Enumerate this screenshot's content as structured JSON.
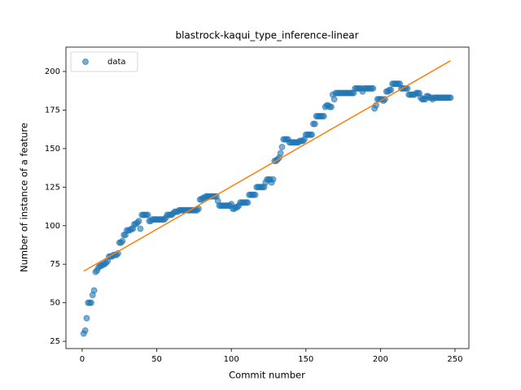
{
  "chart_data": {
    "type": "scatter",
    "title": "blastrock-kaqui_type_inference-linear",
    "x_label": "Commit number",
    "y_label": "Number of instance of a feature",
    "legend_position": "upper left",
    "xlim": [
      -10.9,
      259.3
    ],
    "ylim": [
      20.3,
      215.8
    ],
    "xticks": [
      0,
      50,
      100,
      150,
      200,
      250
    ],
    "yticks": [
      25,
      50,
      75,
      100,
      125,
      150,
      175,
      200
    ],
    "series": [
      {
        "name": "data",
        "color": "#1f77b4",
        "x": [
          1,
          2,
          3,
          4,
          5,
          6,
          7,
          8,
          9,
          10,
          11,
          12,
          13,
          14,
          15,
          16,
          17,
          18,
          19,
          20,
          21,
          22,
          23,
          24,
          25,
          26,
          27,
          28,
          29,
          30,
          31,
          32,
          33,
          34,
          35,
          36,
          37,
          38,
          39,
          40,
          41,
          42,
          43,
          44,
          45,
          46,
          47,
          48,
          49,
          50,
          51,
          52,
          53,
          54,
          55,
          56,
          57,
          58,
          59,
          60,
          61,
          62,
          63,
          64,
          65,
          66,
          67,
          68,
          69,
          70,
          71,
          72,
          73,
          74,
          75,
          76,
          77,
          78,
          79,
          80,
          81,
          82,
          83,
          84,
          85,
          86,
          87,
          88,
          89,
          90,
          91,
          92,
          93,
          94,
          95,
          96,
          97,
          98,
          99,
          100,
          101,
          102,
          103,
          104,
          105,
          106,
          107,
          108,
          109,
          110,
          111,
          112,
          113,
          114,
          115,
          116,
          117,
          118,
          119,
          120,
          121,
          122,
          123,
          124,
          125,
          126,
          127,
          128,
          129,
          130,
          131,
          132,
          133,
          134,
          135,
          136,
          137,
          138,
          139,
          140,
          141,
          142,
          143,
          144,
          145,
          146,
          147,
          148,
          149,
          150,
          151,
          152,
          153,
          154,
          155,
          156,
          157,
          158,
          159,
          160,
          161,
          162,
          163,
          164,
          165,
          166,
          167,
          168,
          169,
          170,
          171,
          172,
          173,
          174,
          175,
          176,
          177,
          178,
          179,
          180,
          181,
          182,
          183,
          184,
          185,
          186,
          187,
          188,
          189,
          190,
          191,
          192,
          193,
          194,
          195,
          196,
          197,
          198,
          199,
          200,
          201,
          202,
          203,
          204,
          205,
          206,
          207,
          208,
          209,
          210,
          211,
          212,
          213,
          214,
          215,
          216,
          217,
          218,
          219,
          220,
          221,
          222,
          223,
          224,
          225,
          226,
          227,
          228,
          229,
          230,
          231,
          232,
          233,
          234,
          235,
          236,
          237,
          238,
          239,
          240,
          241,
          242,
          243,
          244,
          245,
          246,
          247
        ],
        "values": [
          30,
          32,
          40,
          50,
          50,
          50,
          55,
          58,
          70,
          71,
          73,
          74,
          74,
          75,
          75,
          76,
          77,
          80,
          80,
          80,
          81,
          81,
          81,
          82,
          89,
          89,
          90,
          94,
          94,
          97,
          97,
          97,
          98,
          98,
          101,
          101,
          102,
          103,
          98,
          107,
          107,
          107,
          107,
          107,
          103,
          103,
          104,
          104,
          104,
          104,
          104,
          104,
          104,
          104,
          104,
          105,
          107,
          107,
          107,
          107,
          108,
          109,
          109,
          109,
          110,
          110,
          110,
          110,
          110,
          110,
          110,
          110,
          110,
          110,
          110,
          110,
          110,
          111,
          117,
          117,
          118,
          118,
          119,
          119,
          119,
          119,
          119,
          119,
          119,
          119,
          116,
          113,
          113,
          113,
          113,
          113,
          113,
          113,
          113,
          114,
          111,
          111,
          112,
          112,
          113,
          115,
          115,
          115,
          115,
          115,
          115,
          120,
          120,
          120,
          120,
          120,
          125,
          125,
          125,
          125,
          125,
          125,
          128,
          130,
          130,
          130,
          128,
          130,
          142,
          142,
          143,
          144,
          147,
          151,
          156,
          156,
          156,
          156,
          154,
          154,
          154,
          154,
          154,
          154,
          154,
          155,
          155,
          155,
          156,
          159,
          159,
          159,
          159,
          159,
          166,
          166,
          171,
          171,
          171,
          171,
          171,
          171,
          177,
          178,
          178,
          177,
          177,
          185,
          182,
          186,
          186,
          186,
          186,
          186,
          186,
          186,
          186,
          186,
          186,
          186,
          186,
          186,
          189,
          189,
          189,
          189,
          189,
          187,
          189,
          189,
          189,
          189,
          189,
          189,
          189,
          176,
          178,
          182,
          182,
          182,
          182,
          181,
          182,
          187,
          187,
          188,
          188,
          192,
          192,
          192,
          192,
          192,
          192,
          189,
          189,
          189,
          189,
          189,
          185,
          185,
          185,
          185,
          185,
          186,
          186,
          186,
          183,
          182,
          182,
          182,
          184,
          184,
          183,
          183,
          182,
          183,
          183,
          183,
          183,
          183,
          183,
          183,
          183,
          183,
          183,
          183,
          183
        ]
      }
    ],
    "fit_line": {
      "color": "#ff7f0e",
      "x": [
        1,
        247
      ],
      "values": [
        70.5,
        207
      ]
    }
  }
}
